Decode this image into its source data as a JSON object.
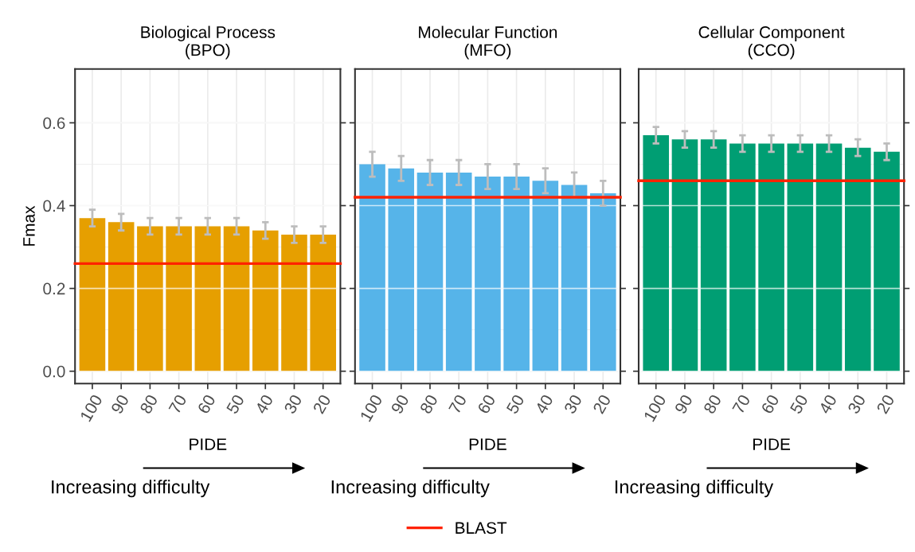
{
  "chart_data": [
    {
      "type": "bar",
      "title": "Biological Process\n(BPO)",
      "xlabel": "PIDE",
      "ylabel": "Fmax",
      "categories": [
        "100",
        "90",
        "80",
        "70",
        "60",
        "50",
        "40",
        "30",
        "20"
      ],
      "values": [
        0.37,
        0.36,
        0.35,
        0.35,
        0.35,
        0.35,
        0.34,
        0.33,
        0.33
      ],
      "errors": [
        0.02,
        0.02,
        0.02,
        0.02,
        0.02,
        0.02,
        0.02,
        0.02,
        0.02
      ],
      "color": "#e69f00",
      "ylim": [
        -0.03,
        0.73
      ],
      "yticks": [
        {
          "value": 0,
          "label": "0.0"
        },
        0.2,
        0.4,
        0.6
      ],
      "grid": true,
      "legend": "bottom",
      "ref_lines": [
        {
          "axis": "y",
          "value": 0.26,
          "label": "BLAST",
          "color": "#ff2200"
        }
      ],
      "annotations": [
        "Increasing difficulty"
      ]
    },
    {
      "type": "bar",
      "title": "Molecular Function\n(MFO)",
      "xlabel": "PIDE",
      "categories": [
        "100",
        "90",
        "80",
        "70",
        "60",
        "50",
        "40",
        "30",
        "20"
      ],
      "values": [
        0.5,
        0.49,
        0.48,
        0.48,
        0.47,
        0.47,
        0.46,
        0.45,
        0.43
      ],
      "errors": [
        0.03,
        0.03,
        0.03,
        0.03,
        0.03,
        0.03,
        0.03,
        0.03,
        0.03
      ],
      "color": "#56b4e9",
      "ylim": [
        -0.03,
        0.73
      ],
      "yticks": [
        0.0,
        0.2,
        0.4,
        0.6
      ],
      "grid": true,
      "tick_labels": "x",
      "ref_lines": [
        {
          "axis": "y",
          "value": 0.42,
          "color": "#ff2200"
        }
      ],
      "annotations": [
        "Increasing difficulty"
      ]
    },
    {
      "type": "bar",
      "title": "Cellular Component\n(CCO)",
      "xlabel": "PIDE",
      "categories": [
        "100",
        "90",
        "80",
        "70",
        "60",
        "50",
        "40",
        "30",
        "20"
      ],
      "values": [
        0.57,
        0.56,
        0.56,
        0.55,
        0.55,
        0.55,
        0.55,
        0.54,
        0.53
      ],
      "errors": [
        0.02,
        0.02,
        0.02,
        0.02,
        0.02,
        0.02,
        0.02,
        0.02,
        0.02
      ],
      "color": "#009e73",
      "ylim": [
        -0.03,
        0.73
      ],
      "yticks": [
        0.0,
        0.2,
        0.4,
        0.6
      ],
      "grid": true,
      "tick_labels": "x",
      "ref_lines": [
        {
          "axis": "y",
          "value": 0.46,
          "color": "#ff2200"
        }
      ],
      "annotations": [
        "Increasing difficulty"
      ]
    }
  ]
}
